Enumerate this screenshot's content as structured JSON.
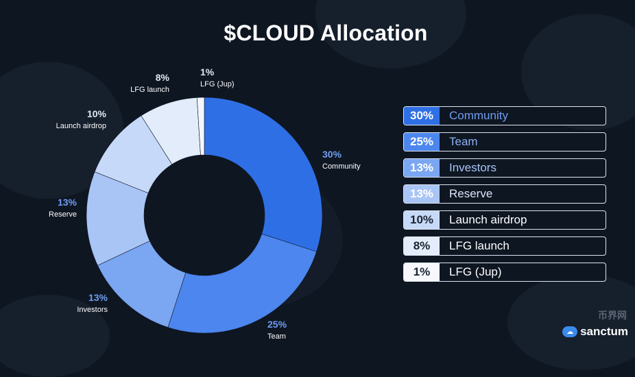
{
  "title": "$CLOUD Allocation",
  "colors": {
    "background": "#0e1622",
    "community": "#2f6fe6",
    "team": "#4c86ee",
    "investors": "#7aa6f2",
    "reserve": "#a9c5f6",
    "launch_airdrop": "#c7d9f8",
    "lfg_launch": "#e3ecfb",
    "lfg_jup": "#f3f6fc",
    "label_accent": "#2f6fe6"
  },
  "chart_data": {
    "type": "pie",
    "donut": true,
    "title": "$CLOUD Allocation",
    "slices": [
      {
        "label": "Community",
        "value": 30,
        "display": "30%",
        "color": "#2f6fe6"
      },
      {
        "label": "Team",
        "value": 25,
        "display": "25%",
        "color": "#4c86ee"
      },
      {
        "label": "Investors",
        "value": 13,
        "display": "13%",
        "color": "#7aa6f2"
      },
      {
        "label": "Reserve",
        "value": 13,
        "display": "13%",
        "color": "#a9c5f6"
      },
      {
        "label": "Launch airdrop",
        "value": 10,
        "display": "10%",
        "color": "#c7d9f8"
      },
      {
        "label": "LFG launch",
        "value": 8,
        "display": "8%",
        "color": "#e3ecfb"
      },
      {
        "label": "LFG (Jup)",
        "value": 1,
        "display": "1%",
        "color": "#f3f6fc"
      }
    ],
    "legend_placement": "right"
  },
  "legend": [
    {
      "pct": "30%",
      "name": "Community",
      "bg": "#2f6fe6",
      "fg": "#ffffff",
      "name_color": "#6f9df0"
    },
    {
      "pct": "25%",
      "name": "Team",
      "bg": "#4c86ee",
      "fg": "#ffffff",
      "name_color": "#8db1f3"
    },
    {
      "pct": "13%",
      "name": "Investors",
      "bg": "#7aa6f2",
      "fg": "#ffffff",
      "name_color": "#a9c5f6"
    },
    {
      "pct": "13%",
      "name": "Reserve",
      "bg": "#a9c5f6",
      "fg": "#ffffff",
      "name_color": "#dbe6f9"
    },
    {
      "pct": "10%",
      "name": "Launch airdrop",
      "bg": "#c7d9f8",
      "fg": "#1b2230",
      "name_color": "#ffffff"
    },
    {
      "pct": "8%",
      "name": "LFG launch",
      "bg": "#e3ecfb",
      "fg": "#1b2230",
      "name_color": "#ffffff"
    },
    {
      "pct": "1%",
      "name": "LFG (Jup)",
      "bg": "#f6f8fd",
      "fg": "#1b2230",
      "name_color": "#ffffff"
    }
  ],
  "watermark": {
    "brand": "sanctum",
    "icon": "cloud-logo-icon",
    "secondary": "币界网"
  }
}
